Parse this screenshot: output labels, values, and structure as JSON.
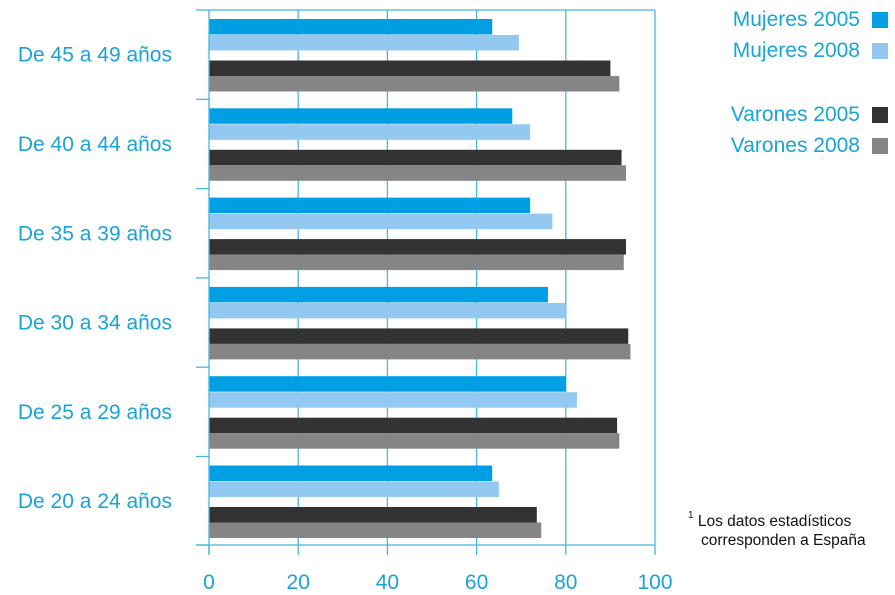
{
  "chart_data": {
    "type": "bar",
    "orientation": "horizontal",
    "categories": [
      "De 45 a 49 años",
      "De 40 a 44 años",
      "De 35 a 39 años",
      "De 30 a 34 años",
      "De 25 a 29 años",
      "De 20 a 24 años"
    ],
    "series": [
      {
        "name": "Mujeres 2005",
        "color": "#009fe3",
        "values": [
          63.5,
          68,
          72,
          76,
          80,
          63.5
        ]
      },
      {
        "name": "Mujeres 2008",
        "color": "#93c9f0",
        "values": [
          69.5,
          72,
          77,
          80,
          82.5,
          65
        ]
      },
      {
        "name": "Varones 2005",
        "color": "#333333",
        "values": [
          90,
          92.5,
          93.5,
          94,
          91.5,
          73.5
        ]
      },
      {
        "name": "Varones 2008",
        "color": "#858585",
        "values": [
          92,
          93.5,
          93,
          94.5,
          92,
          74.5
        ]
      }
    ],
    "xlim": [
      0,
      100
    ],
    "xticks": [
      0,
      20,
      40,
      60,
      80,
      100
    ],
    "grid": true,
    "legend_position": "top-right",
    "axis_color": "#49b5e0"
  },
  "footnote": {
    "marker": "1",
    "line1": "Los datos estadísticos",
    "line2": "corresponden a España"
  }
}
